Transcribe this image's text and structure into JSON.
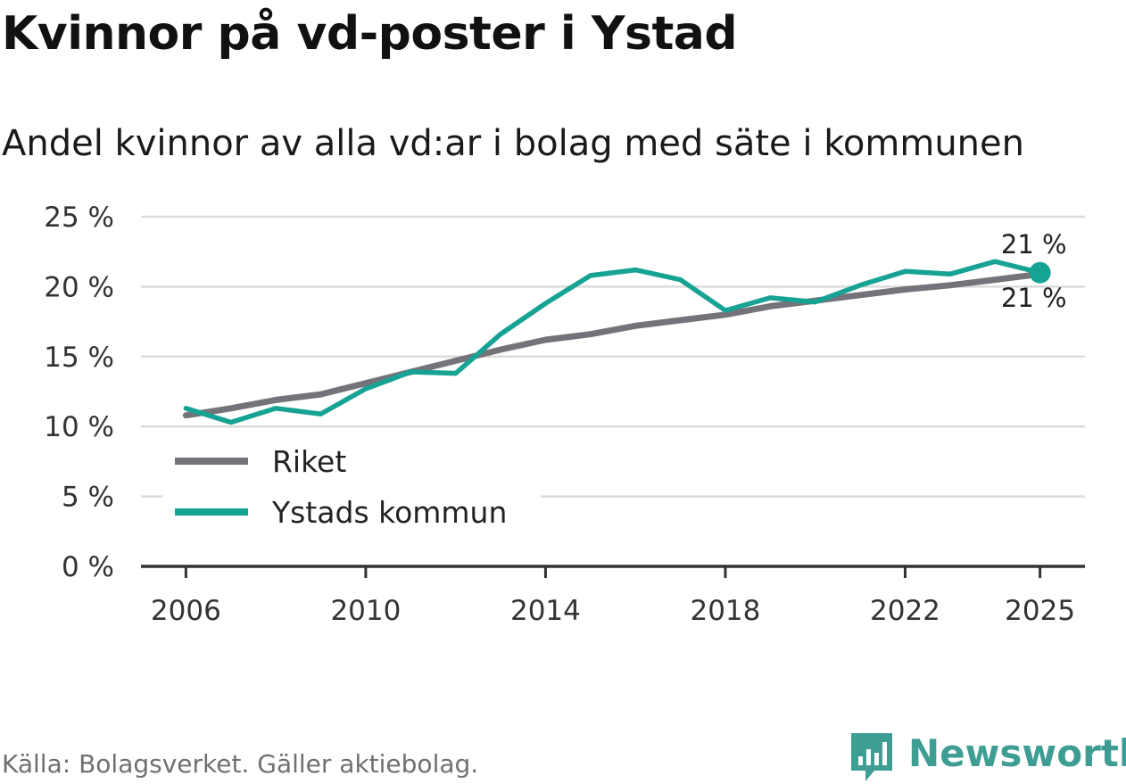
{
  "header": {
    "title": "Kvinnor på vd-poster i Ystad",
    "subtitle": "Andel kvinnor av alla vd:ar i bolag med säte i kommunen"
  },
  "footer": {
    "source": "Källa: Bolagsverket. Gäller aktiebolag.",
    "brand": "Newsworthy"
  },
  "colors": {
    "riket": "#75737a",
    "ystad": "#16a394",
    "grid": "#dcdcdc",
    "axis": "#333333",
    "brand": "#3f9e93"
  },
  "chart_data": {
    "type": "line",
    "title": "Kvinnor på vd-poster i Ystad",
    "subtitle": "Andel kvinnor av alla vd:ar i bolag med säte i kommunen",
    "xlabel": "",
    "ylabel": "",
    "x": [
      2006,
      2007,
      2008,
      2009,
      2010,
      2011,
      2012,
      2013,
      2014,
      2015,
      2016,
      2017,
      2018,
      2019,
      2020,
      2021,
      2022,
      2023,
      2024,
      2025
    ],
    "xticks": [
      2006,
      2010,
      2014,
      2018,
      2022,
      2025
    ],
    "xtick_labels": [
      "2006",
      "2010",
      "2014",
      "2018",
      "2022",
      "2025"
    ],
    "ylim": [
      0,
      25
    ],
    "xlim": [
      2005,
      2026
    ],
    "yticks": [
      0,
      5,
      10,
      15,
      20,
      25
    ],
    "ytick_labels": [
      "0 %",
      "5 %",
      "10 %",
      "15 %",
      "20 %",
      "25 %"
    ],
    "grid": true,
    "legend_position": "lower-left",
    "series": [
      {
        "name": "Riket",
        "values": [
          10.8,
          11.3,
          11.9,
          12.3,
          13.1,
          13.9,
          14.7,
          15.5,
          16.2,
          16.6,
          17.2,
          17.6,
          18.0,
          18.6,
          19.0,
          19.4,
          19.8,
          20.1,
          20.5,
          20.9
        ],
        "end_label": "21 %"
      },
      {
        "name": "Ystads kommun",
        "values": [
          11.3,
          10.3,
          11.3,
          10.9,
          12.7,
          13.9,
          13.8,
          16.6,
          18.8,
          20.8,
          21.2,
          20.5,
          18.3,
          19.2,
          18.9,
          20.1,
          21.1,
          20.9,
          21.8,
          21.0
        ],
        "end_label": "21 %"
      }
    ]
  }
}
